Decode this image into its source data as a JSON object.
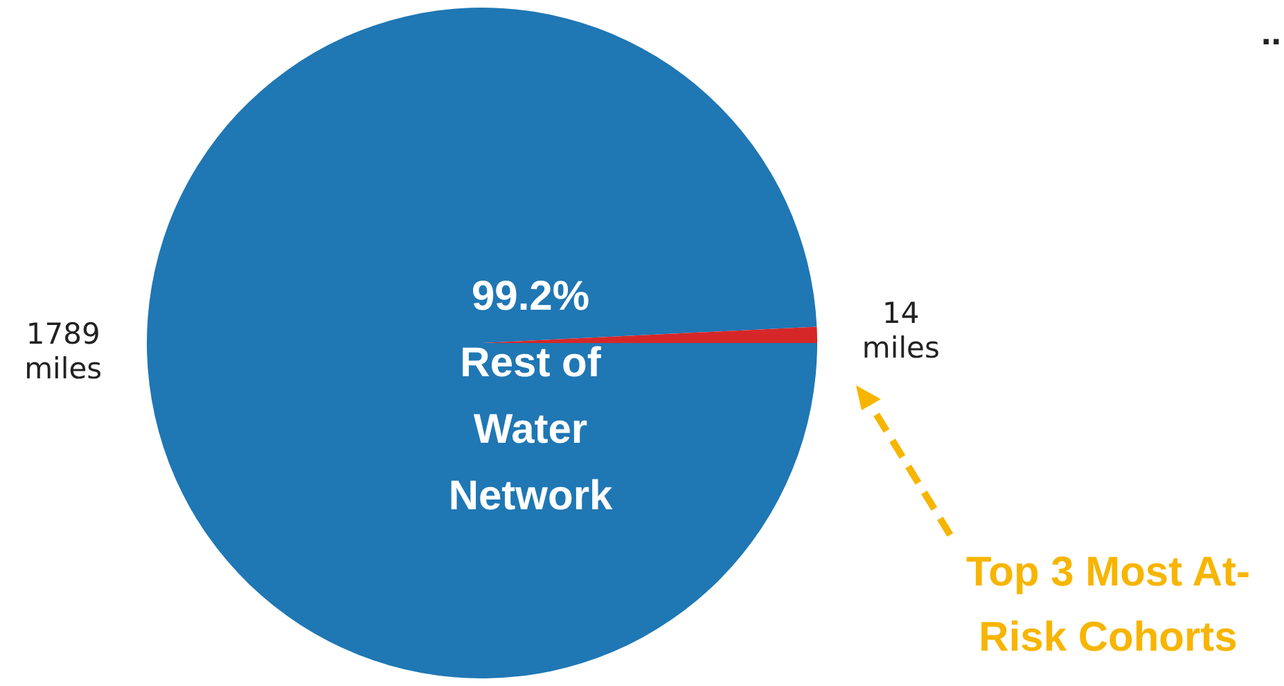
{
  "chart_data": {
    "type": "pie",
    "categories": [
      "Rest of\nWater\nNetwork",
      null
    ],
    "values": [
      1789,
      14
    ],
    "colors": [
      "#1f77b4",
      "#d62728"
    ],
    "value_labels": [
      "1789\nmiles",
      "14\nmiles"
    ],
    "annotations": [
      "99.2%",
      "..",
      "Top 3 Most At-\nRisk Cohorts"
    ],
    "legend": false
  }
}
